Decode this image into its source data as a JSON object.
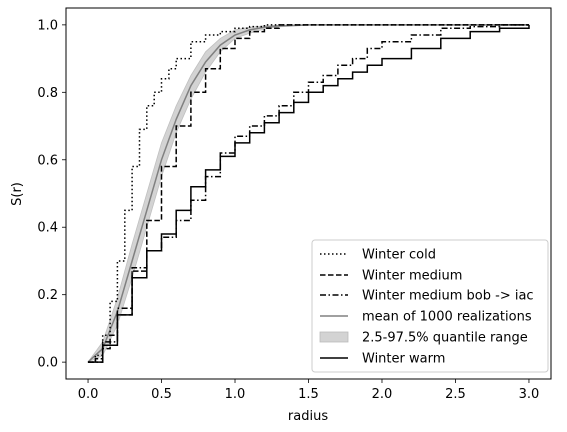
{
  "chart_data": {
    "type": "line",
    "xlabel": "radius",
    "ylabel": "S(r)",
    "xlim": [
      -0.15,
      3.15
    ],
    "ylim": [
      -0.05,
      1.05
    ],
    "x_ticks": [
      "0.0",
      "0.5",
      "1.0",
      "1.5",
      "2.0",
      "2.5",
      "3.0"
    ],
    "y_ticks": [
      "0.0",
      "0.2",
      "0.4",
      "0.6",
      "0.8",
      "1.0"
    ],
    "grid": false,
    "legend_position": "bottom-right",
    "series": [
      {
        "name": "Winter cold",
        "style": "dotted",
        "color": "#000000",
        "x": [
          0.0,
          0.05,
          0.1,
          0.15,
          0.2,
          0.25,
          0.3,
          0.35,
          0.4,
          0.45,
          0.5,
          0.55,
          0.6,
          0.7,
          0.8,
          0.9,
          1.0,
          1.1,
          1.2,
          1.3,
          3.0
        ],
        "y": [
          0.0,
          0.02,
          0.08,
          0.18,
          0.3,
          0.45,
          0.58,
          0.69,
          0.76,
          0.8,
          0.84,
          0.87,
          0.9,
          0.95,
          0.97,
          0.98,
          0.99,
          0.995,
          1.0,
          1.0,
          1.0
        ]
      },
      {
        "name": "Winter medium",
        "style": "dashed",
        "color": "#000000",
        "x": [
          0.0,
          0.05,
          0.1,
          0.15,
          0.2,
          0.3,
          0.4,
          0.5,
          0.6,
          0.7,
          0.8,
          0.9,
          1.0,
          1.1,
          1.2,
          1.3,
          1.5,
          1.8,
          3.0
        ],
        "y": [
          0.0,
          0.01,
          0.04,
          0.08,
          0.14,
          0.27,
          0.42,
          0.58,
          0.7,
          0.8,
          0.87,
          0.93,
          0.96,
          0.98,
          0.99,
          1.0,
          1.0,
          1.0,
          1.0
        ]
      },
      {
        "name": "Winter medium bob -> iac",
        "style": "dashdot",
        "color": "#000000",
        "x": [
          0.0,
          0.1,
          0.2,
          0.3,
          0.4,
          0.5,
          0.6,
          0.7,
          0.8,
          0.9,
          1.0,
          1.1,
          1.2,
          1.3,
          1.4,
          1.5,
          1.6,
          1.7,
          1.8,
          1.9,
          2.0,
          2.2,
          2.4,
          2.6,
          2.8,
          3.0
        ],
        "y": [
          0.0,
          0.06,
          0.16,
          0.28,
          0.33,
          0.37,
          0.42,
          0.48,
          0.55,
          0.62,
          0.67,
          0.7,
          0.73,
          0.76,
          0.8,
          0.83,
          0.85,
          0.88,
          0.9,
          0.93,
          0.95,
          0.97,
          0.99,
          0.995,
          1.0,
          1.0
        ]
      },
      {
        "name": "Winter warm",
        "style": "solid",
        "color": "#000000",
        "x": [
          0.0,
          0.1,
          0.2,
          0.3,
          0.4,
          0.5,
          0.6,
          0.7,
          0.8,
          0.9,
          1.0,
          1.1,
          1.2,
          1.3,
          1.4,
          1.5,
          1.6,
          1.7,
          1.8,
          1.9,
          2.0,
          2.2,
          2.4,
          2.6,
          2.8,
          3.0
        ],
        "y": [
          0.0,
          0.05,
          0.14,
          0.25,
          0.33,
          0.38,
          0.45,
          0.52,
          0.57,
          0.61,
          0.65,
          0.68,
          0.71,
          0.74,
          0.77,
          0.8,
          0.82,
          0.84,
          0.86,
          0.88,
          0.9,
          0.93,
          0.96,
          0.98,
          0.99,
          1.0
        ]
      }
    ],
    "mean_realizations": {
      "name": "mean of 1000 realizations",
      "color": "#808080",
      "x": [
        0.0,
        0.1,
        0.2,
        0.3,
        0.4,
        0.5,
        0.6,
        0.7,
        0.8,
        0.9,
        1.0,
        1.1,
        1.2,
        1.3,
        1.5,
        1.8,
        3.0
      ],
      "y": [
        0.0,
        0.04,
        0.15,
        0.3,
        0.45,
        0.6,
        0.72,
        0.82,
        0.89,
        0.94,
        0.97,
        0.985,
        0.993,
        0.997,
        1.0,
        1.0,
        1.0
      ]
    },
    "quantile_band": {
      "name": "2.5-97.5% quantile range",
      "color": "#d3d3d3",
      "x": [
        0.0,
        0.1,
        0.2,
        0.3,
        0.4,
        0.5,
        0.6,
        0.7,
        0.8,
        0.9,
        1.0,
        1.1,
        1.2,
        1.3,
        1.5,
        1.8,
        3.0
      ],
      "lower": [
        0.0,
        0.02,
        0.11,
        0.25,
        0.4,
        0.55,
        0.68,
        0.78,
        0.86,
        0.92,
        0.96,
        0.975,
        0.988,
        0.994,
        0.999,
        1.0,
        1.0
      ],
      "upper": [
        0.0,
        0.06,
        0.19,
        0.35,
        0.5,
        0.65,
        0.76,
        0.85,
        0.92,
        0.96,
        0.985,
        0.993,
        0.997,
        0.999,
        1.0,
        1.0,
        1.0
      ]
    },
    "legend": [
      "Winter cold",
      "Winter medium",
      "Winter medium bob -> iac",
      "mean of 1000 realizations",
      "2.5-97.5% quantile range",
      "Winter warm"
    ]
  }
}
